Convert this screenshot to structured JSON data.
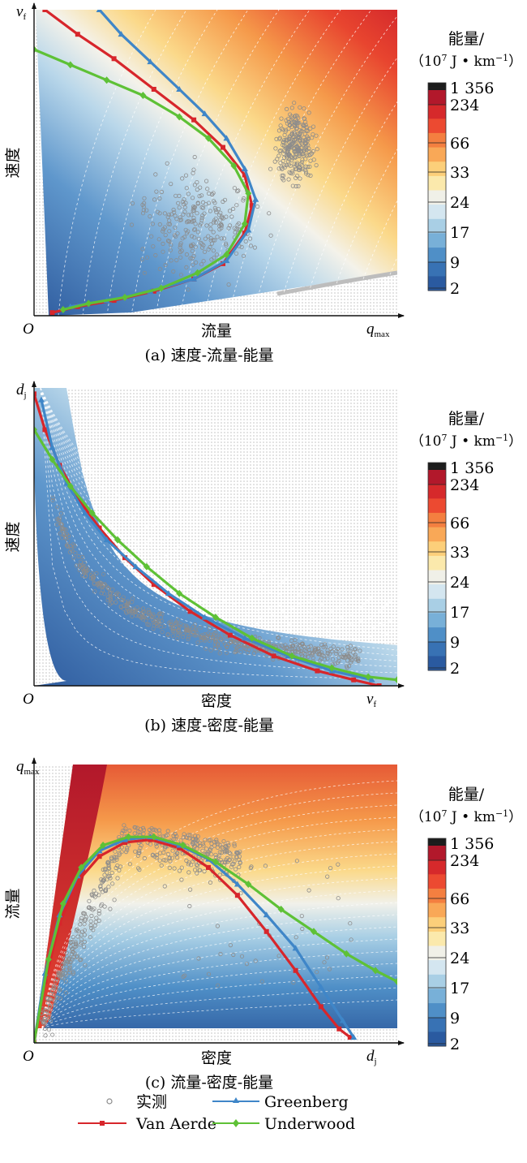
{
  "chart_data": [
    {
      "type": "contour-scatter",
      "id": "a",
      "caption": "(a)  速度-流量-能量",
      "xlabel": "流量",
      "ylabel": "速度",
      "x_end_label": "q",
      "x_end_sub": "max",
      "y_top_label": "v",
      "y_top_sub": "f",
      "origin_label": "O",
      "x_domain": [
        0,
        1
      ],
      "y_domain": [
        0,
        1
      ],
      "series": [
        {
          "name": "Van Aerde",
          "points": [
            [
              0.03,
              1.0
            ],
            [
              0.12,
              0.92
            ],
            [
              0.22,
              0.84
            ],
            [
              0.33,
              0.74
            ],
            [
              0.44,
              0.64
            ],
            [
              0.52,
              0.55
            ],
            [
              0.58,
              0.46
            ],
            [
              0.6,
              0.36
            ],
            [
              0.58,
              0.27
            ],
            [
              0.52,
              0.17
            ],
            [
              0.44,
              0.12
            ],
            [
              0.33,
              0.08
            ],
            [
              0.22,
              0.05
            ],
            [
              0.12,
              0.03
            ],
            [
              0.05,
              0.01
            ]
          ]
        },
        {
          "name": "Greenberg",
          "points": [
            [
              0.18,
              1.0
            ],
            [
              0.24,
              0.92
            ],
            [
              0.32,
              0.83
            ],
            [
              0.4,
              0.74
            ],
            [
              0.47,
              0.66
            ],
            [
              0.53,
              0.58
            ],
            [
              0.58,
              0.48
            ],
            [
              0.61,
              0.38
            ],
            [
              0.59,
              0.28
            ],
            [
              0.53,
              0.18
            ],
            [
              0.44,
              0.12
            ],
            [
              0.32,
              0.08
            ],
            [
              0.2,
              0.05
            ],
            [
              0.1,
              0.03
            ]
          ]
        },
        {
          "name": "Underwood",
          "points": [
            [
              0.0,
              0.87
            ],
            [
              0.1,
              0.82
            ],
            [
              0.2,
              0.77
            ],
            [
              0.3,
              0.72
            ],
            [
              0.4,
              0.65
            ],
            [
              0.48,
              0.58
            ],
            [
              0.55,
              0.49
            ],
            [
              0.59,
              0.4
            ],
            [
              0.58,
              0.3
            ],
            [
              0.53,
              0.2
            ],
            [
              0.45,
              0.14
            ],
            [
              0.35,
              0.09
            ],
            [
              0.25,
              0.06
            ],
            [
              0.15,
              0.04
            ],
            [
              0.08,
              0.02
            ]
          ]
        }
      ]
    },
    {
      "type": "contour-scatter",
      "id": "b",
      "caption": "(b)  速度-密度-能量",
      "xlabel": "密度",
      "ylabel": "速度",
      "x_end_label": "v",
      "x_end_sub": "f",
      "y_top_label": "d",
      "y_top_sub": "j",
      "origin_label": "O",
      "x_domain": [
        0,
        1
      ],
      "y_domain": [
        0,
        1
      ],
      "series": [
        {
          "name": "Van Aerde",
          "points": [
            [
              0.0,
              0.98
            ],
            [
              0.03,
              0.86
            ],
            [
              0.07,
              0.74
            ],
            [
              0.12,
              0.63
            ],
            [
              0.18,
              0.53
            ],
            [
              0.25,
              0.43
            ],
            [
              0.33,
              0.34
            ],
            [
              0.43,
              0.25
            ],
            [
              0.54,
              0.17
            ],
            [
              0.66,
              0.1
            ],
            [
              0.78,
              0.05
            ],
            [
              0.88,
              0.02
            ],
            [
              0.95,
              0.0
            ]
          ]
        },
        {
          "name": "Greenberg",
          "points": [
            [
              0.02,
              0.96
            ],
            [
              0.05,
              0.8
            ],
            [
              0.09,
              0.68
            ],
            [
              0.14,
              0.58
            ],
            [
              0.2,
              0.49
            ],
            [
              0.28,
              0.4
            ],
            [
              0.37,
              0.31
            ],
            [
              0.47,
              0.23
            ],
            [
              0.58,
              0.16
            ],
            [
              0.7,
              0.1
            ],
            [
              0.82,
              0.05
            ],
            [
              0.93,
              0.02
            ]
          ]
        },
        {
          "name": "Underwood",
          "points": [
            [
              0.0,
              0.86
            ],
            [
              0.05,
              0.76
            ],
            [
              0.1,
              0.67
            ],
            [
              0.16,
              0.58
            ],
            [
              0.23,
              0.49
            ],
            [
              0.31,
              0.4
            ],
            [
              0.4,
              0.31
            ],
            [
              0.5,
              0.23
            ],
            [
              0.6,
              0.16
            ],
            [
              0.71,
              0.1
            ],
            [
              0.82,
              0.06
            ],
            [
              0.92,
              0.03
            ],
            [
              1.0,
              0.02
            ]
          ]
        }
      ]
    },
    {
      "type": "contour-scatter",
      "id": "c",
      "caption": "(c)  流量-密度-能量",
      "xlabel": "密度",
      "ylabel": "流量",
      "x_end_label": "d",
      "x_end_sub": "j",
      "y_top_label": "q",
      "y_top_sub": "max",
      "origin_label": "O",
      "x_domain": [
        0,
        1
      ],
      "y_domain": [
        0,
        1
      ],
      "series": [
        {
          "name": "Van Aerde",
          "points": [
            [
              0.0,
              0.0
            ],
            [
              0.03,
              0.22
            ],
            [
              0.07,
              0.43
            ],
            [
              0.12,
              0.58
            ],
            [
              0.18,
              0.67
            ],
            [
              0.25,
              0.72
            ],
            [
              0.32,
              0.73
            ],
            [
              0.4,
              0.7
            ],
            [
              0.48,
              0.63
            ],
            [
              0.56,
              0.53
            ],
            [
              0.64,
              0.4
            ],
            [
              0.72,
              0.26
            ],
            [
              0.79,
              0.13
            ],
            [
              0.84,
              0.05
            ],
            [
              0.87,
              0.02
            ]
          ]
        },
        {
          "name": "Greenberg",
          "points": [
            [
              0.0,
              0.0
            ],
            [
              0.03,
              0.25
            ],
            [
              0.07,
              0.46
            ],
            [
              0.12,
              0.6
            ],
            [
              0.18,
              0.69
            ],
            [
              0.25,
              0.73
            ],
            [
              0.32,
              0.74
            ],
            [
              0.4,
              0.71
            ],
            [
              0.48,
              0.66
            ],
            [
              0.56,
              0.57
            ],
            [
              0.64,
              0.46
            ],
            [
              0.72,
              0.34
            ],
            [
              0.79,
              0.2
            ],
            [
              0.85,
              0.08
            ],
            [
              0.88,
              0.02
            ]
          ]
        },
        {
          "name": "Underwood",
          "points": [
            [
              0.0,
              0.0
            ],
            [
              0.04,
              0.3
            ],
            [
              0.08,
              0.5
            ],
            [
              0.13,
              0.63
            ],
            [
              0.19,
              0.71
            ],
            [
              0.26,
              0.74
            ],
            [
              0.33,
              0.74
            ],
            [
              0.41,
              0.71
            ],
            [
              0.5,
              0.65
            ],
            [
              0.59,
              0.57
            ],
            [
              0.68,
              0.48
            ],
            [
              0.77,
              0.4
            ],
            [
              0.86,
              0.32
            ],
            [
              0.94,
              0.26
            ],
            [
              1.0,
              0.22
            ]
          ]
        }
      ]
    }
  ],
  "colorbar": {
    "title_line1": "能量/",
    "title_prefix": "（10",
    "title_sup": "7",
    "title_unit": " J • km",
    "title_exp": "−1",
    "title_close": "）",
    "ticks": [
      "1 356",
      "234",
      "66",
      "33",
      "24",
      "17",
      "9",
      "2"
    ],
    "colors": [
      "#1c1c1c",
      "#b2182b",
      "#d6292b",
      "#ec4a31",
      "#f47f40",
      "#f9a857",
      "#fccf7a",
      "#fbe9ac",
      "#f0f0e8",
      "#d4e6f0",
      "#a9cfe5",
      "#78b0d8",
      "#4f8fc7",
      "#3872b4",
      "#2a5aa0"
    ]
  },
  "legend": {
    "measured": "实测",
    "van_aerde": "Van Aerde",
    "greenberg": "Greenberg",
    "underwood": "Underwood"
  },
  "colors": {
    "measured": "#8c8c8c",
    "van_aerde": "#d7262b",
    "greenberg": "#3f86c8",
    "underwood": "#5ec136"
  }
}
